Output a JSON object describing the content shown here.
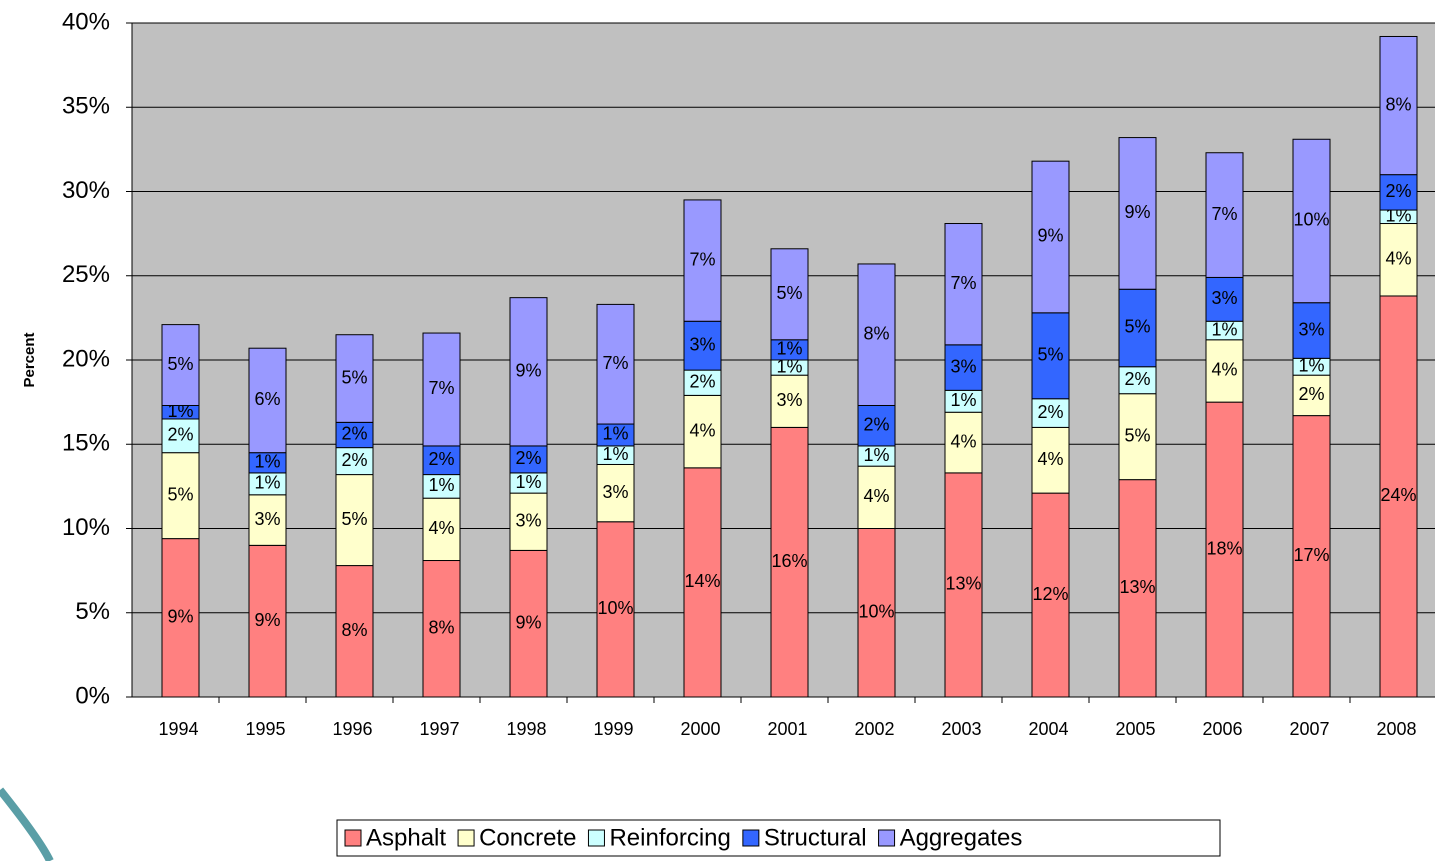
{
  "chart_data": {
    "type": "bar",
    "stacked": true,
    "y_label": "Percent",
    "categories": [
      "1994",
      "1995",
      "1996",
      "1997",
      "1998",
      "1999",
      "2000",
      "2001",
      "2002",
      "2003",
      "2004",
      "2005",
      "2006",
      "2007",
      "2008"
    ],
    "series": [
      {
        "name": "Asphalt",
        "color": "#ff8080",
        "values": [
          9.4,
          9.0,
          7.8,
          8.1,
          8.7,
          10.4,
          13.6,
          16.0,
          10.0,
          13.3,
          12.1,
          12.9,
          17.5,
          16.7,
          23.8
        ],
        "value_labels": [
          "9%",
          "9%",
          "8%",
          "8%",
          "9%",
          "10%",
          "14%",
          "16%",
          "10%",
          "13%",
          "12%",
          "13%",
          "18%",
          "17%",
          "24%"
        ]
      },
      {
        "name": "Concrete",
        "color": "#ffffcc",
        "values": [
          5.1,
          3.0,
          5.4,
          3.7,
          3.4,
          3.4,
          4.3,
          3.1,
          3.7,
          3.6,
          3.9,
          5.1,
          3.7,
          2.4,
          4.3
        ],
        "value_labels": [
          "5%",
          "3%",
          "5%",
          "4%",
          "3%",
          "3%",
          "4%",
          "3%",
          "4%",
          "4%",
          "4%",
          "5%",
          "4%",
          "2%",
          "4%"
        ]
      },
      {
        "name": "Reinforcing",
        "color": "#ccffff",
        "values": [
          2.0,
          1.3,
          1.6,
          1.4,
          1.2,
          1.1,
          1.5,
          0.9,
          1.2,
          1.3,
          1.7,
          1.6,
          1.1,
          1.0,
          0.8
        ],
        "value_labels": [
          "2%",
          "1%",
          "2%",
          "1%",
          "1%",
          "1%",
          "2%",
          "1%",
          "1%",
          "1%",
          "2%",
          "2%",
          "1%",
          "1%",
          "1%"
        ]
      },
      {
        "name": "Structural",
        "color": "#3366ff",
        "values": [
          0.8,
          1.2,
          1.5,
          1.7,
          1.6,
          1.3,
          2.9,
          1.2,
          2.4,
          2.7,
          5.1,
          4.6,
          2.6,
          3.3,
          2.1
        ],
        "value_labels": [
          "1%",
          "1%",
          "2%",
          "2%",
          "2%",
          "1%",
          "3%",
          "1%",
          "2%",
          "3%",
          "5%",
          "5%",
          "3%",
          "3%",
          "2%"
        ]
      },
      {
        "name": "Aggregates",
        "color": "#9999ff",
        "values": [
          4.8,
          6.2,
          5.2,
          6.7,
          8.8,
          7.1,
          7.2,
          5.4,
          8.4,
          7.2,
          9.0,
          9.0,
          7.4,
          9.7,
          8.2
        ],
        "value_labels": [
          "5%",
          "6%",
          "5%",
          "7%",
          "9%",
          "7%",
          "7%",
          "5%",
          "8%",
          "7%",
          "9%",
          "9%",
          "7%",
          "10%",
          "8%"
        ]
      }
    ],
    "ylim": [
      0,
      40
    ],
    "yticks": [
      {
        "value": 0,
        "label": "0%"
      },
      {
        "value": 5,
        "label": "5%"
      },
      {
        "value": 10,
        "label": "10%"
      },
      {
        "value": 15,
        "label": "15%"
      },
      {
        "value": 20,
        "label": "20%"
      },
      {
        "value": 25,
        "label": "25%"
      },
      {
        "value": 30,
        "label": "30%"
      },
      {
        "value": 35,
        "label": "35%"
      },
      {
        "value": 40,
        "label": "40%"
      }
    ],
    "grid": true,
    "plot_background": "#c0c0c0",
    "legend": "bottom"
  }
}
